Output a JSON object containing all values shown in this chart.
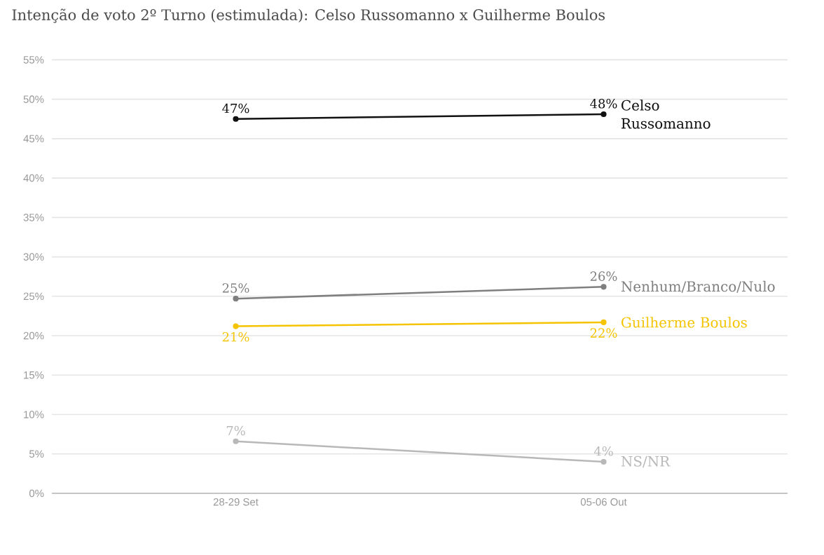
{
  "chart_data": {
    "type": "line",
    "title": "Intenção de voto 2º Turno (estimulada): Celso Russomanno x Guilherme Boulos",
    "categories": [
      "28-29 Set",
      "05-06 Out"
    ],
    "series": [
      {
        "name": "Celso Russomanno",
        "color": "#111111",
        "values": [
          47.5,
          48.1
        ],
        "value_labels": [
          "47%",
          "48%"
        ]
      },
      {
        "name": "Nenhum/Branco/Nulo",
        "color": "#7f7f7f",
        "values": [
          24.7,
          26.2
        ],
        "value_labels": [
          "25%",
          "26%"
        ]
      },
      {
        "name": "Guilherme Boulos",
        "color": "#f5c400",
        "values": [
          21.2,
          21.7
        ],
        "value_labels": [
          "21%",
          "22%"
        ]
      },
      {
        "name": "NS/NR",
        "color": "#b8b8b8",
        "values": [
          6.6,
          4.0
        ],
        "value_labels": [
          "7%",
          "4%"
        ]
      }
    ],
    "ylim": [
      0,
      55
    ],
    "yticks": [
      {
        "value": 0,
        "label": "0%"
      },
      {
        "value": 5,
        "label": "5%"
      },
      {
        "value": 10,
        "label": "10%"
      },
      {
        "value": 15,
        "label": "15%"
      },
      {
        "value": 20,
        "label": "20%"
      },
      {
        "value": 25,
        "label": "25%"
      },
      {
        "value": 30,
        "label": "30%"
      },
      {
        "value": 35,
        "label": "35%"
      },
      {
        "value": 40,
        "label": "40%"
      },
      {
        "value": 45,
        "label": "45%"
      },
      {
        "value": 50,
        "label": "50%"
      },
      {
        "value": 55,
        "label": "55%"
      }
    ],
    "grid": "y",
    "marker": "circle",
    "line_style": "solid"
  }
}
